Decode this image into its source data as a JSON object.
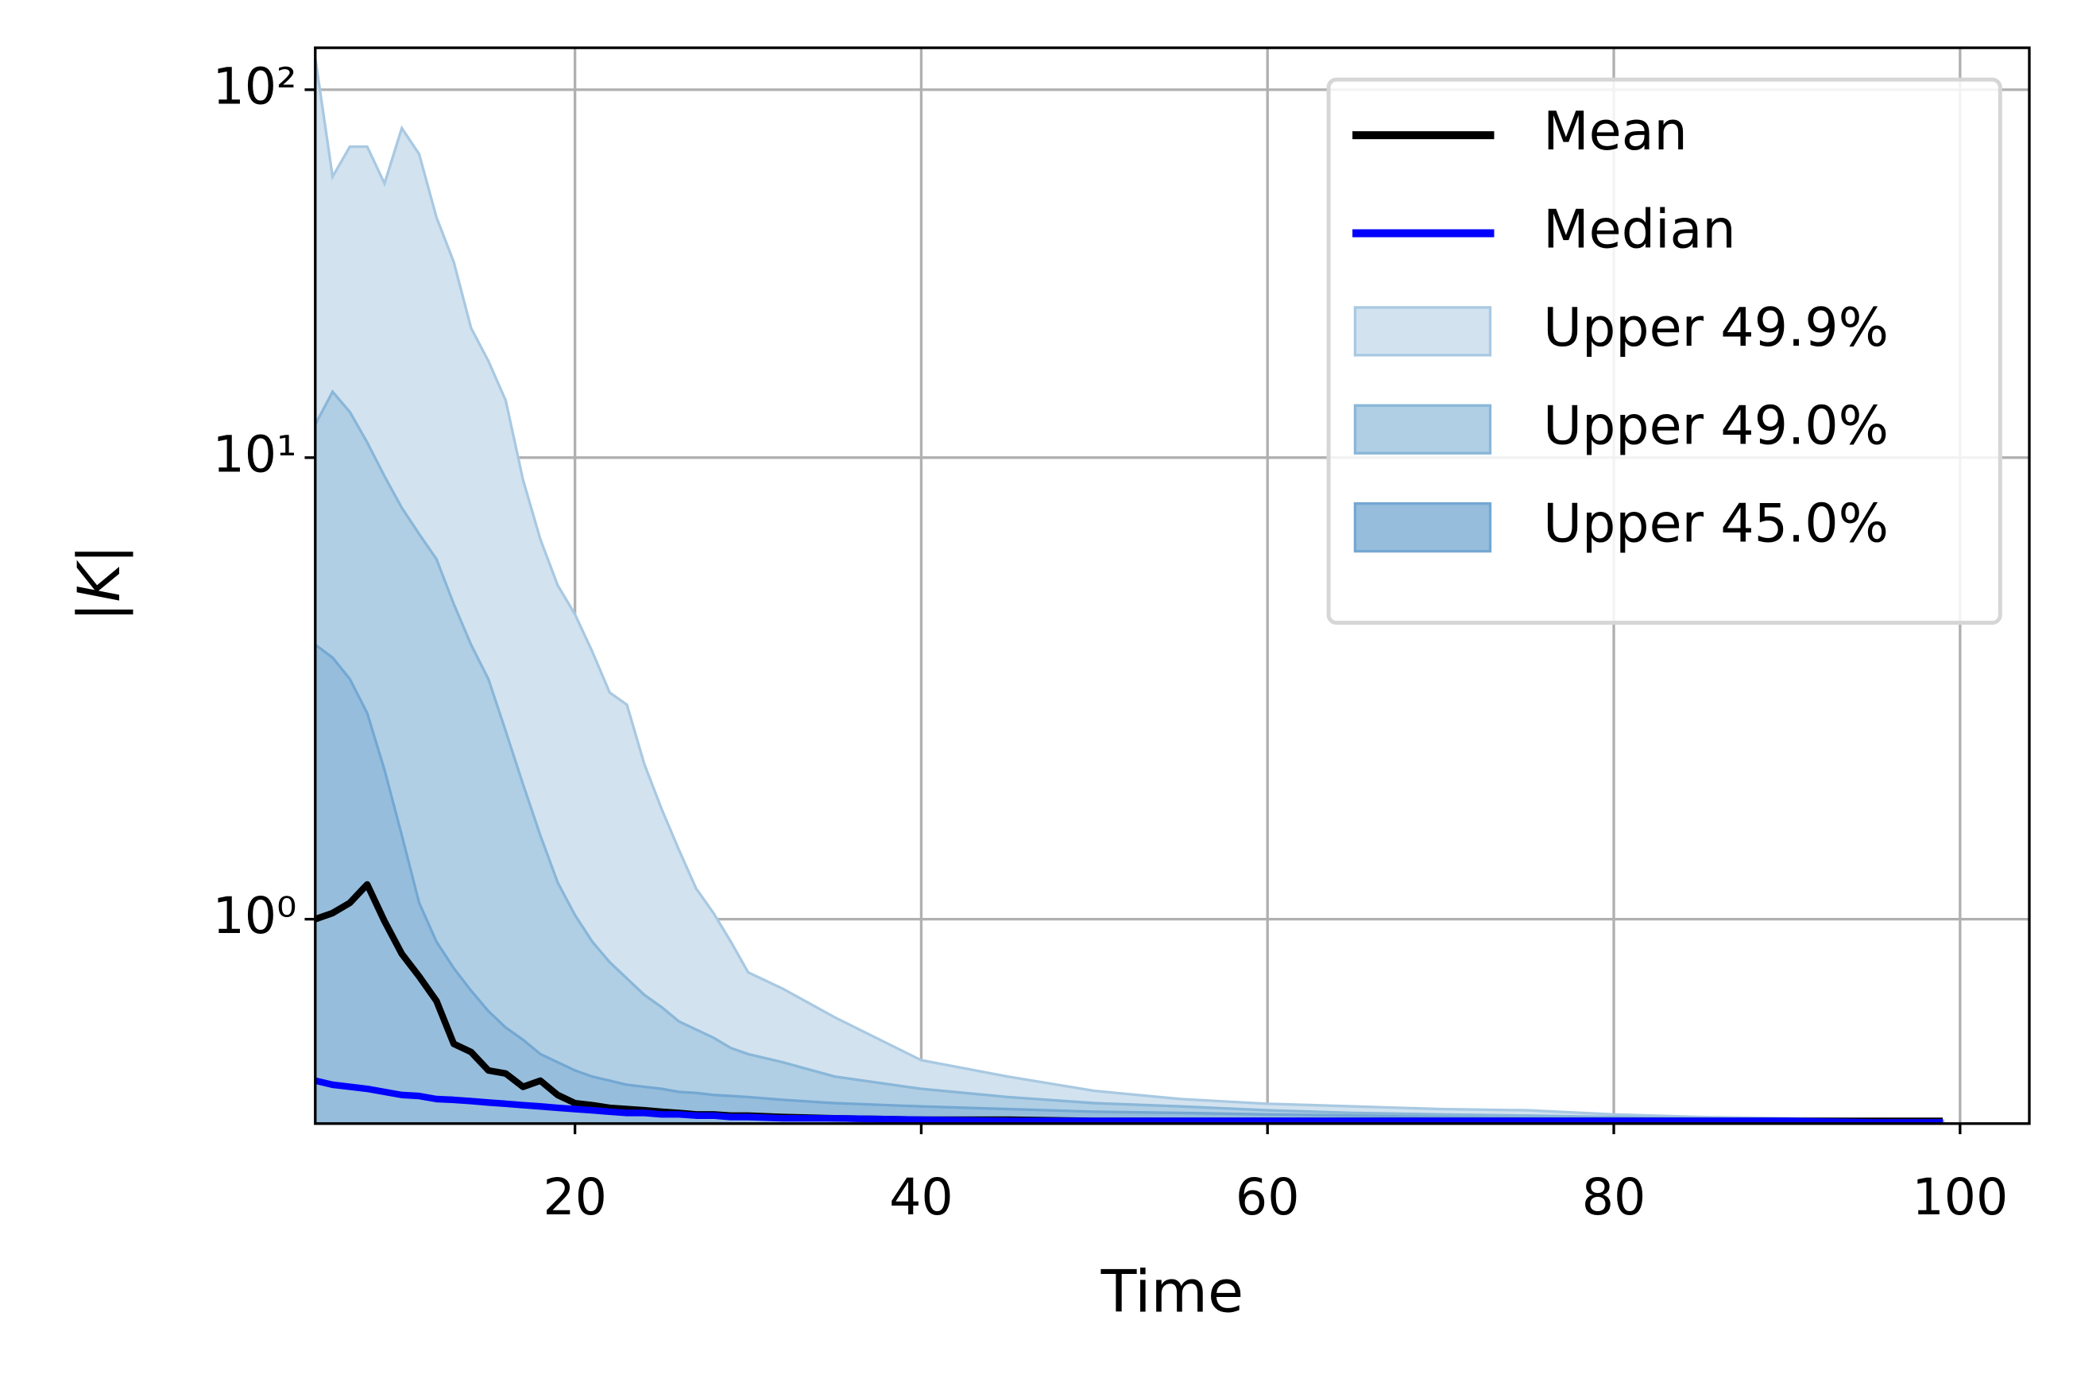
{
  "chart_data": {
    "type": "line",
    "xlabel": "Time",
    "ylabel": "|K|",
    "yscale": "symlog",
    "linthresh": 2,
    "grid": true,
    "legend": "upper right",
    "xlim": [
      5,
      104
    ],
    "xticks": [
      20,
      40,
      60,
      80,
      100
    ],
    "ylim": [
      0,
      130
    ],
    "yticks": [
      {
        "value": 1,
        "label": "10⁰"
      },
      {
        "value": 10,
        "label": "10¹"
      },
      {
        "value": 100,
        "label": "10²"
      }
    ],
    "x": [
      5,
      6,
      7,
      8,
      9,
      10,
      11,
      12,
      13,
      14,
      15,
      16,
      17,
      18,
      19,
      20,
      21,
      22,
      23,
      24,
      25,
      26,
      27,
      28,
      29,
      30,
      32,
      35,
      40,
      45,
      50,
      55,
      60,
      65,
      70,
      75,
      80,
      85,
      90,
      95,
      99
    ],
    "series": [
      {
        "name": "Upper 49.9%",
        "style": "fill",
        "color": "#d2e3ef",
        "edge": "#a9c9e2",
        "values": [
          122,
          58,
          70,
          70,
          55.6,
          78.6,
          66.8,
          45,
          34,
          22.5,
          18.3,
          14.3,
          8.7,
          6.0,
          4.5,
          3.75,
          2.97,
          2.3,
          2.13,
          1.76,
          1.54,
          1.34,
          1.15,
          1.03,
          0.89,
          0.74,
          0.66,
          0.52,
          0.31,
          0.23,
          0.16,
          0.12,
          0.097,
          0.084,
          0.071,
          0.065,
          0.045,
          0.032,
          0.026,
          0.02,
          0.014
        ]
      },
      {
        "name": "Upper 49.0%",
        "style": "fill",
        "color": "#b0cfe5",
        "edge": "#8ab6d8",
        "values": [
          12.3,
          15.1,
          13.3,
          11.0,
          8.9,
          7.3,
          6.2,
          5.3,
          4.0,
          3.1,
          2.5,
          1.92,
          1.66,
          1.41,
          1.18,
          1.02,
          0.89,
          0.79,
          0.71,
          0.63,
          0.57,
          0.5,
          0.46,
          0.42,
          0.37,
          0.34,
          0.3,
          0.23,
          0.17,
          0.13,
          0.1,
          0.084,
          0.065,
          0.052,
          0.045,
          0.039,
          0.032,
          0.026,
          0.02,
          0.013,
          0.013
        ]
      },
      {
        "name": "Upper 45.0%",
        "style": "fill",
        "color": "#96bedc",
        "edge": "#74a8d2",
        "values": [
          3.1,
          2.86,
          2.5,
          2.02,
          1.73,
          1.41,
          1.08,
          0.89,
          0.76,
          0.65,
          0.55,
          0.47,
          0.41,
          0.34,
          0.3,
          0.26,
          0.23,
          0.21,
          0.19,
          0.18,
          0.17,
          0.155,
          0.15,
          0.14,
          0.135,
          0.13,
          0.116,
          0.1,
          0.084,
          0.071,
          0.058,
          0.052,
          0.045,
          0.039,
          0.032,
          0.026,
          0.026,
          0.02,
          0.02,
          0.013,
          0.013
        ]
      },
      {
        "name": "Mean",
        "style": "line",
        "color": "#000000",
        "values": [
          1.0,
          1.03,
          1.08,
          1.17,
          0.99,
          0.83,
          0.72,
          0.6,
          0.39,
          0.35,
          0.26,
          0.245,
          0.18,
          0.21,
          0.14,
          0.1,
          0.09,
          0.077,
          0.071,
          0.065,
          0.058,
          0.052,
          0.045,
          0.045,
          0.039,
          0.039,
          0.032,
          0.026,
          0.019,
          0.019,
          0.013,
          0.013,
          0.013,
          0.013,
          0.013,
          0.013,
          0.013,
          0.013,
          0.013,
          0.013,
          0.013
        ]
      },
      {
        "name": "Median",
        "style": "line",
        "color": "#0000ff",
        "values": [
          0.21,
          0.19,
          0.18,
          0.17,
          0.155,
          0.14,
          0.135,
          0.12,
          0.116,
          0.11,
          0.103,
          0.097,
          0.09,
          0.084,
          0.077,
          0.071,
          0.065,
          0.058,
          0.052,
          0.052,
          0.045,
          0.045,
          0.039,
          0.039,
          0.032,
          0.032,
          0.026,
          0.026,
          0.019,
          0.013,
          0.013,
          0.013,
          0.013,
          0.013,
          0.013,
          0.013,
          0.013,
          0.013,
          0.013,
          0.006,
          0.006
        ]
      }
    ]
  }
}
